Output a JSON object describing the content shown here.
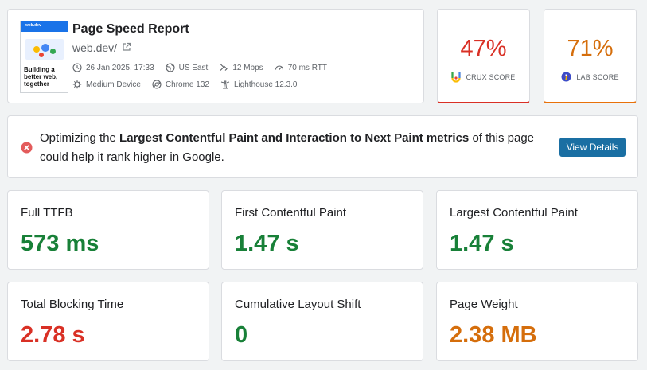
{
  "header": {
    "title": "Page Speed Report",
    "url": "web.dev/",
    "thumbnail": {
      "bar_text": "web.dev",
      "headline": "Building a better web, together"
    },
    "meta": {
      "date": "26 Jan 2025, 17:33",
      "location": "US East",
      "bandwidth": "12 Mbps",
      "rtt": "70 ms RTT",
      "device": "Medium Device",
      "browser": "Chrome 132",
      "lighthouse": "Lighthouse 12.3.0"
    }
  },
  "scores": {
    "crux": {
      "value": "47%",
      "label": "CRUX SCORE",
      "color": "#d93025",
      "icon": "crux-logo-icon"
    },
    "lab": {
      "value": "71%",
      "label": "LAB SCORE",
      "color": "#e8710a",
      "icon": "lighthouse-logo-icon"
    }
  },
  "alert": {
    "pre": "Optimizing the ",
    "bold": "Largest Contentful Paint and Interaction to Next Paint metrics",
    "post": " of this page could help it rank higher in Google.",
    "button": "View Details",
    "icon": "error-icon"
  },
  "metrics": {
    "ttfb": {
      "label": "Full TTFB",
      "value": "573 ms",
      "status": "good"
    },
    "fcp": {
      "label": "First Contentful Paint",
      "value": "1.47 s",
      "status": "good"
    },
    "lcp": {
      "label": "Largest Contentful Paint",
      "value": "1.47 s",
      "status": "good"
    },
    "tbt": {
      "label": "Total Blocking Time",
      "value": "2.78 s",
      "status": "bad"
    },
    "cls": {
      "label": "Cumulative Layout Shift",
      "value": "0",
      "status": "good"
    },
    "pw": {
      "label": "Page Weight",
      "value": "2.38 MB",
      "status": "mid"
    }
  },
  "colors": {
    "good": "#188038",
    "bad": "#d93025",
    "mid": "#d56e0c",
    "button": "#1a6fa3"
  }
}
